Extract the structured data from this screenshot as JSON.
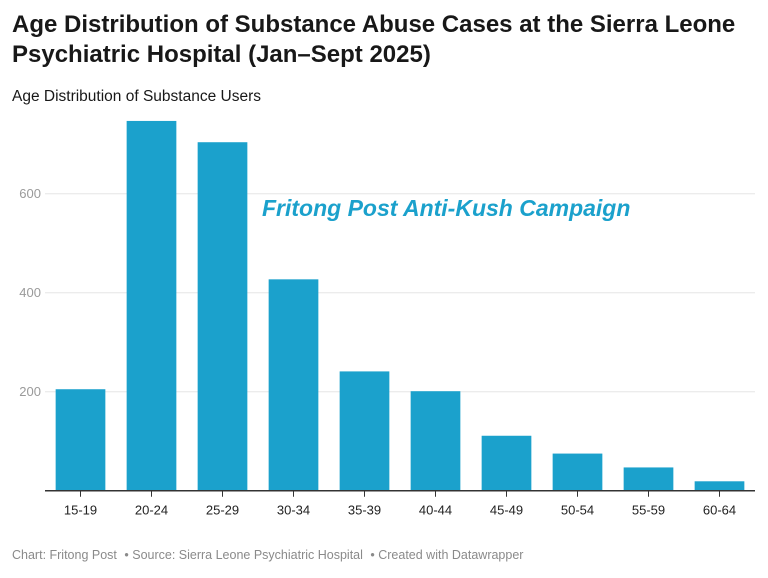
{
  "title": "Age Distribution of Substance Abuse Cases at the Sierra Leone Psychiatric Hospital (Jan–Sept 2025)",
  "subtitle": "Age Distribution of Substance Users",
  "footer": {
    "chart_credit": "Chart: Fritong Post",
    "source": "• Source: Sierra Leone Psychiatric Hospital",
    "created_with": "• Created with Datawrapper"
  },
  "chart_data": {
    "type": "bar",
    "categories": [
      "15-19",
      "20-24",
      "25-29",
      "30-34",
      "35-39",
      "40-44",
      "45-49",
      "50-54",
      "55-59",
      "60-64"
    ],
    "values": [
      205,
      747,
      704,
      427,
      241,
      201,
      111,
      75,
      47,
      19
    ],
    "ylim": [
      0,
      760
    ],
    "yticks": [
      200,
      400,
      600
    ],
    "grid": true,
    "annotation": "Fritong Post Anti-Kush Campaign",
    "colors": {
      "bar": "#1ba1cc",
      "annotation": "#1ba1cc",
      "grid": "#e6e6e6",
      "axis": "#333333"
    }
  }
}
